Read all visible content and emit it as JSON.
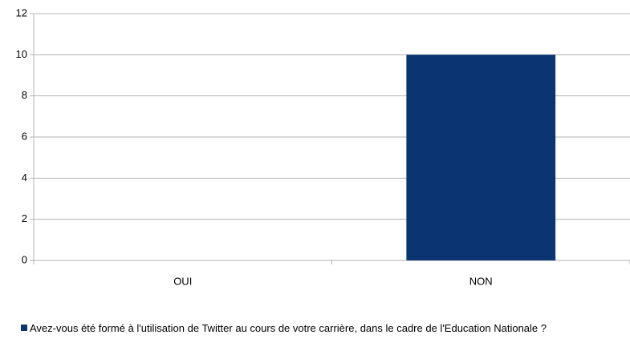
{
  "chart_data": {
    "type": "bar",
    "categories": [
      "OUI",
      "NON"
    ],
    "series": [
      {
        "name": "Avez-vous été formé à l'utilisation de Twitter au cours de votre carrière, dans le cadre de l'Education Nationale ?",
        "color": "#0b3473",
        "values": [
          0,
          10
        ]
      }
    ],
    "ylim": [
      0,
      12
    ],
    "yticks": [
      0,
      2,
      4,
      6,
      8,
      10,
      12
    ],
    "grid": true,
    "legend": "bottom"
  }
}
